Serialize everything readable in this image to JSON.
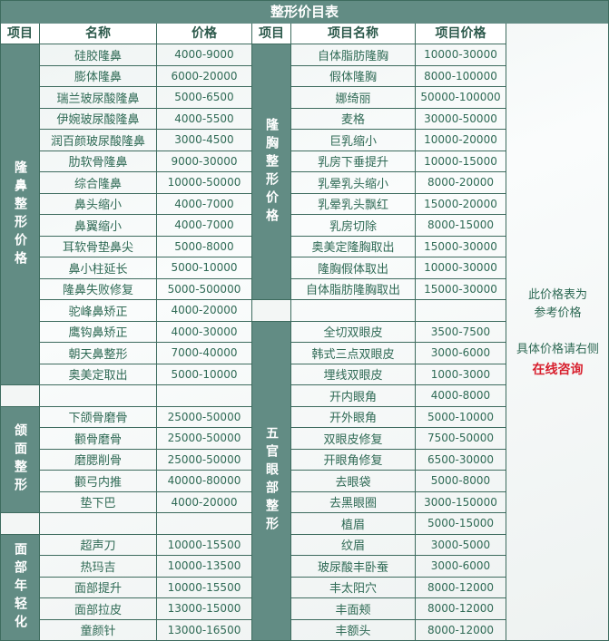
{
  "title": "整形价目表",
  "left": {
    "headers": [
      "项目",
      "名称",
      "价格"
    ],
    "groups": [
      {
        "category": "隆鼻整形价格",
        "items": [
          [
            "硅胶隆鼻",
            "4000-9000"
          ],
          [
            "膨体隆鼻",
            "6000-20000"
          ],
          [
            "瑞兰玻尿酸隆鼻",
            "5000-6500"
          ],
          [
            "伊婉玻尿酸隆鼻",
            "4000-5500"
          ],
          [
            "润百颜玻尿酸隆鼻",
            "3000-4500"
          ],
          [
            "肋软骨隆鼻",
            "9000-30000"
          ],
          [
            "综合隆鼻",
            "10000-50000"
          ],
          [
            "鼻头缩小",
            "4000-7000"
          ],
          [
            "鼻翼缩小",
            "4000-7000"
          ],
          [
            "耳软骨垫鼻尖",
            "5000-8000"
          ],
          [
            "鼻小柱延长",
            "5000-10000"
          ],
          [
            "隆鼻失败修复",
            "5000-500000"
          ],
          [
            "驼峰鼻矫正",
            "4000-20000"
          ],
          [
            "鹰钩鼻矫正",
            "4000-30000"
          ],
          [
            "朝天鼻整形",
            "7000-40000"
          ],
          [
            "奥美定取出",
            "5000-10000"
          ]
        ]
      },
      {
        "category": "",
        "items": [
          [
            "",
            ""
          ]
        ]
      },
      {
        "category": "颌面整形",
        "items": [
          [
            "下颌骨磨骨",
            "25000-50000"
          ],
          [
            "颧骨磨骨",
            "25000-50000"
          ],
          [
            "磨腮削骨",
            "25000-50000"
          ],
          [
            "颧弓内推",
            "40000-80000"
          ],
          [
            "垫下巴",
            "4000-20000"
          ]
        ]
      },
      {
        "category": "",
        "items": [
          [
            "",
            ""
          ]
        ]
      },
      {
        "category": "面部年轻化",
        "items": [
          [
            "超声刀",
            "10000-15500"
          ],
          [
            "热玛吉",
            "10000-13500"
          ],
          [
            "面部提升",
            "10000-15500"
          ],
          [
            "面部拉皮",
            "13000-15000"
          ],
          [
            "童颜针",
            "13000-16500"
          ]
        ]
      }
    ]
  },
  "right": {
    "headers": [
      "项目",
      "项目名称",
      "项目价格"
    ],
    "groups": [
      {
        "category": "隆胸整形价格",
        "items": [
          [
            "自体脂肪隆胸",
            "10000-30000"
          ],
          [
            "假体隆胸",
            "8000-100000"
          ],
          [
            "娜绮丽",
            "50000-100000"
          ],
          [
            "麦格",
            "30000-50000"
          ],
          [
            "巨乳缩小",
            "10000-20000"
          ],
          [
            "乳房下垂提升",
            "10000-15000"
          ],
          [
            "乳晕乳头缩小",
            "8000-20000"
          ],
          [
            "乳晕乳头飘红",
            "15000-20000"
          ],
          [
            "乳房切除",
            "8000-15000"
          ],
          [
            "奥美定隆胸取出",
            "15000-30000"
          ],
          [
            "隆胸假体取出",
            "10000-30000"
          ],
          [
            "自体脂肪隆胸取出",
            "15000-30000"
          ]
        ]
      },
      {
        "category": "",
        "items": [
          [
            "",
            ""
          ]
        ]
      },
      {
        "category": "五官眼部整形",
        "items": [
          [
            "全切双眼皮",
            "3500-7500"
          ],
          [
            "韩式三点双眼皮",
            "3000-6000"
          ],
          [
            "埋线双眼皮",
            "1000-3000"
          ],
          [
            "开内眼角",
            "4000-8000"
          ],
          [
            "开外眼角",
            "5000-10000"
          ],
          [
            "双眼皮修复",
            "7500-50000"
          ],
          [
            "开眼角修复",
            "6500-30000"
          ],
          [
            "去眼袋",
            "5000-8000"
          ],
          [
            "去黑眼圈",
            "3000-150000"
          ],
          [
            "植眉",
            "5000-15000"
          ],
          [
            "纹眉",
            "3000-5000"
          ],
          [
            "玻尿酸丰卧蚕",
            "3000-6000"
          ],
          [
            "丰太阳穴",
            "8000-12000"
          ],
          [
            "丰面颊",
            "8000-12000"
          ],
          [
            "丰额头",
            "8000-12000"
          ]
        ]
      }
    ]
  },
  "note": {
    "line1": "此价格表为",
    "line2": "参考价格",
    "line3": "具体价格请右侧",
    "cta": "在线咨询"
  },
  "colors": {
    "header_bg": "#628c84",
    "border": "#3d6b5e",
    "text": "#2f6a55",
    "cta": "#d8202e"
  }
}
